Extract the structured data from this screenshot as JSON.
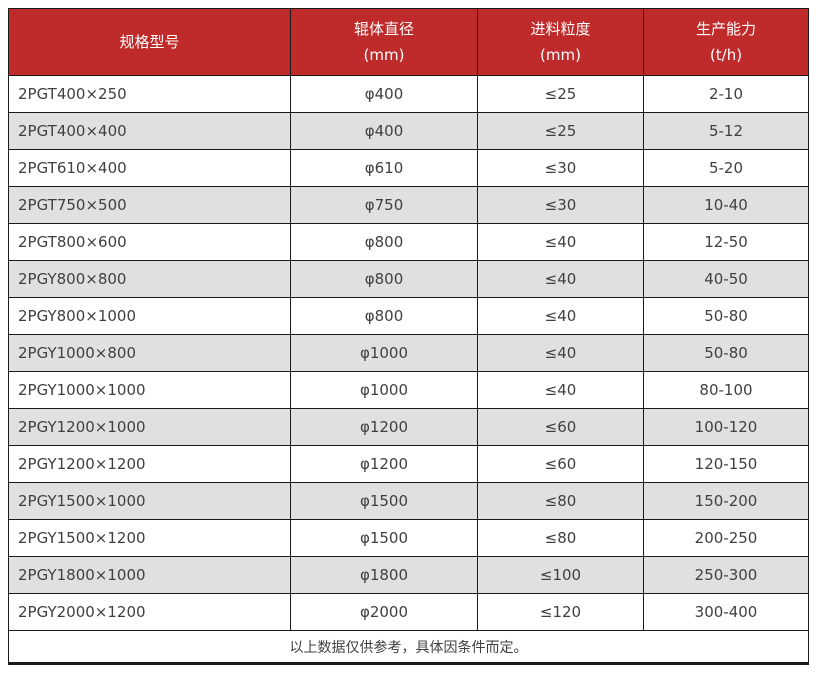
{
  "colors": {
    "header_bg": "#bf2b2b",
    "header_text": "#ffffff",
    "row_bg": "#ffffff",
    "row_alt_bg": "#e0e0e0",
    "border": "#1a1a1a",
    "body_text": "#404040"
  },
  "chart_data": {
    "type": "table",
    "title": "",
    "columns": [
      {
        "line1": "规格型号",
        "line2": ""
      },
      {
        "line1": "辊体直径",
        "line2": "(mm)"
      },
      {
        "line1": "进料粒度",
        "line2": "(mm)"
      },
      {
        "line1": "生产能力",
        "line2": "(t/h)"
      }
    ],
    "rows": [
      [
        "2PGT400×250",
        "φ400",
        "≤25",
        "2-10"
      ],
      [
        "2PGT400×400",
        "φ400",
        "≤25",
        "5-12"
      ],
      [
        "2PGT610×400",
        "φ610",
        "≤30",
        "5-20"
      ],
      [
        "2PGT750×500",
        "φ750",
        "≤30",
        "10-40"
      ],
      [
        "2PGT800×600",
        "φ800",
        "≤40",
        "12-50"
      ],
      [
        "2PGY800×800",
        "φ800",
        "≤40",
        "40-50"
      ],
      [
        "2PGY800×1000",
        "φ800",
        "≤40",
        "50-80"
      ],
      [
        "2PGY1000×800",
        "φ1000",
        "≤40",
        "50-80"
      ],
      [
        "2PGY1000×1000",
        "φ1000",
        "≤40",
        "80-100"
      ],
      [
        "2PGY1200×1000",
        "φ1200",
        "≤60",
        "100-120"
      ],
      [
        "2PGY1200×1200",
        "φ1200",
        "≤60",
        "120-150"
      ],
      [
        "2PGY1500×1000",
        "φ1500",
        "≤80",
        "150-200"
      ],
      [
        "2PGY1500×1200",
        "φ1500",
        "≤80",
        "200-250"
      ],
      [
        "2PGY1800×1000",
        "φ1800",
        "≤100",
        "250-300"
      ],
      [
        "2PGY2000×1200",
        "φ2000",
        "≤120",
        "300-400"
      ]
    ],
    "footer_note": "以上数据仅供参考，具体因条件而定。"
  }
}
